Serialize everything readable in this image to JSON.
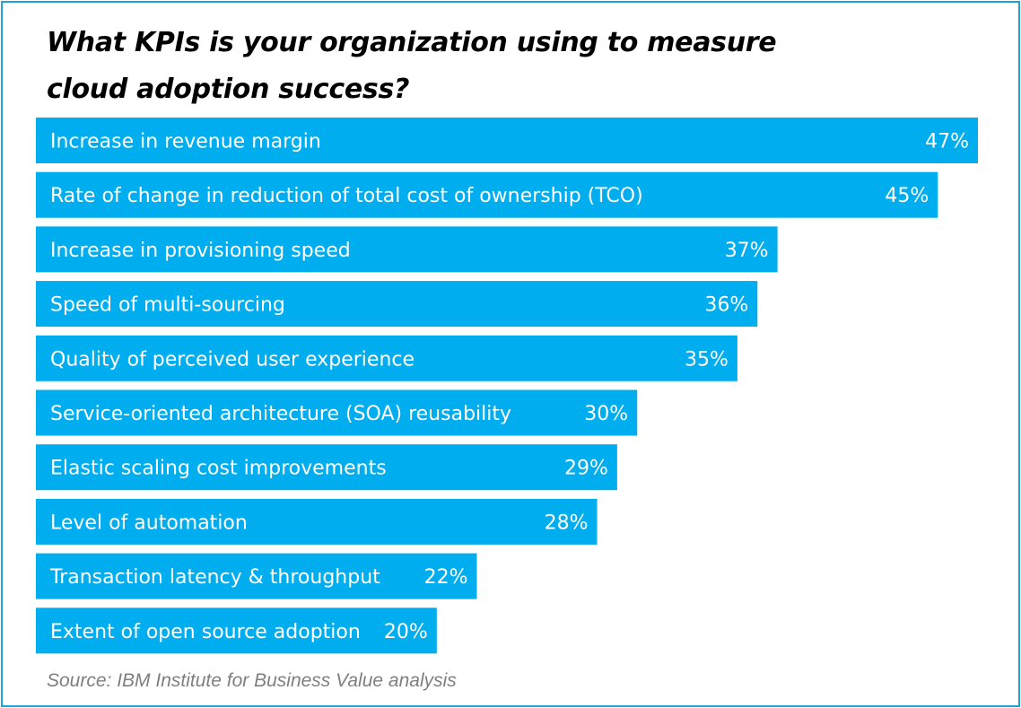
{
  "title": "What KPIs is your organization using to measure cloud adoption success?",
  "source": "Source: IBM Institute for Business Value analysis",
  "colors": {
    "bar": "#00adef",
    "bar_text": "#ffffff",
    "border": "#1aa3dd",
    "title": "#000000",
    "source": "#7f7f7f"
  },
  "chart_data": {
    "type": "bar",
    "orientation": "horizontal",
    "categories": [
      "Increase in revenue margin",
      "Rate of change in reduction of total cost of ownership (TCO)",
      "Increase in provisioning speed",
      "Speed of multi-sourcing",
      "Quality of perceived user experience",
      "Service-oriented architecture (SOA) reusability",
      "Elastic scaling cost improvements",
      "Level of automation",
      "Transaction latency & throughput",
      "Extent of open source adoption"
    ],
    "values": [
      47,
      45,
      37,
      36,
      35,
      30,
      29,
      28,
      22,
      20
    ],
    "value_labels": [
      "47%",
      "45%",
      "37%",
      "36%",
      "35%",
      "30%",
      "29%",
      "28%",
      "22%",
      "20%"
    ],
    "unit": "%",
    "xlim": [
      0,
      47
    ],
    "grid": false,
    "legend": "none"
  }
}
